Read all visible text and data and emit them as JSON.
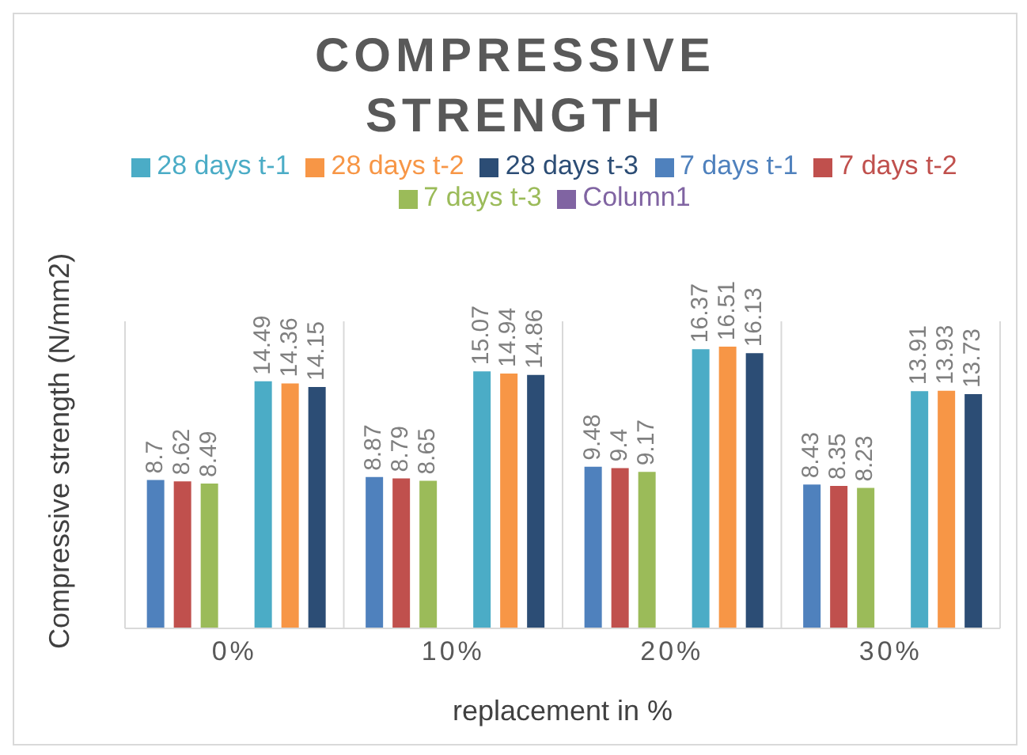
{
  "chart_data": {
    "type": "bar",
    "title": "COMPRESSIVE STRENGTH",
    "xlabel": "replacement in %",
    "ylabel": "Compressive strength (N/mm2)",
    "categories": [
      "0%",
      "10%",
      "20%",
      "30%"
    ],
    "series": [
      {
        "name": "7 days t-1",
        "color": "#4f81bd",
        "values": [
          8.7,
          8.87,
          9.48,
          8.43
        ]
      },
      {
        "name": "7 days t-2",
        "color": "#c0504d",
        "values": [
          8.62,
          8.79,
          9.4,
          8.35
        ]
      },
      {
        "name": "7 days t-3",
        "color": "#9bbb59",
        "values": [
          8.49,
          8.65,
          9.17,
          8.23
        ]
      },
      {
        "name": "Column1",
        "color": "#8064a2",
        "values": [
          null,
          null,
          null,
          null
        ]
      },
      {
        "name": "28 days t-1",
        "color": "#4bacc6",
        "values": [
          14.49,
          15.07,
          16.37,
          13.91
        ]
      },
      {
        "name": "28 days t-2",
        "color": "#f79646",
        "values": [
          14.36,
          14.94,
          16.51,
          13.93
        ]
      },
      {
        "name": "28 days t-3",
        "color": "#2c4d75",
        "values": [
          14.15,
          14.86,
          16.13,
          13.73
        ]
      }
    ],
    "ylim": [
      0,
      18
    ],
    "tick_labels": "x",
    "grid": "x",
    "legend": "top",
    "data_labels": true
  }
}
